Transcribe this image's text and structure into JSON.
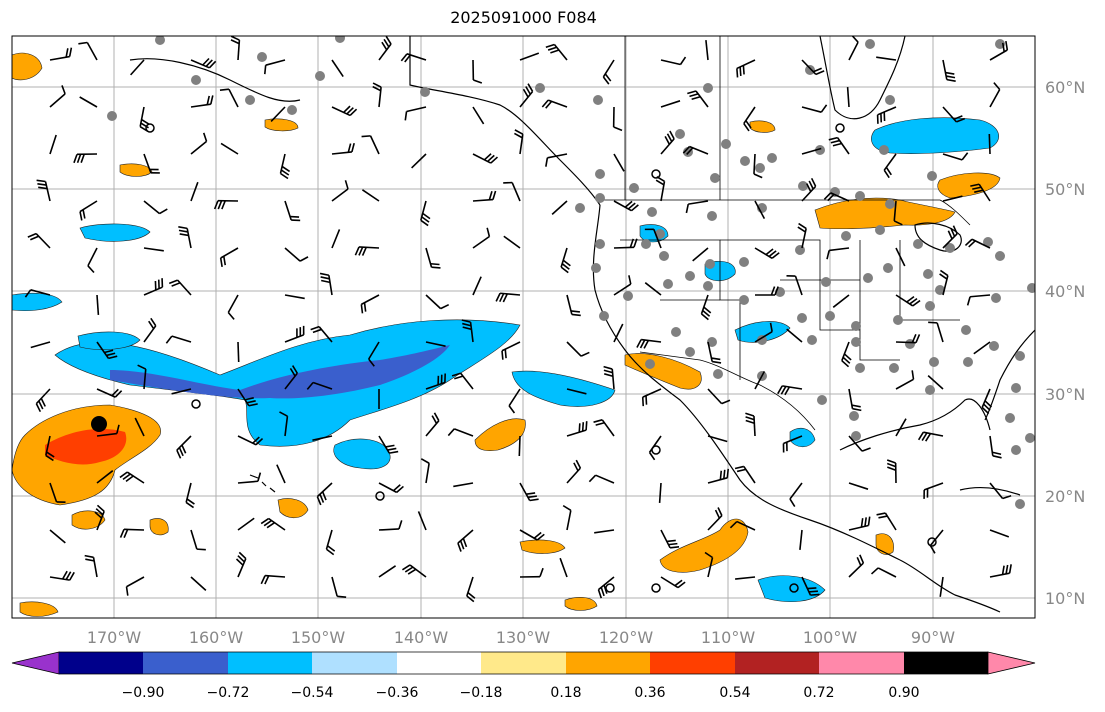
{
  "title": "2025091000 F084",
  "map": {
    "lon_labels": [
      "170°W",
      "160°W",
      "150°W",
      "140°W",
      "130°W",
      "120°W",
      "110°W",
      "100°W",
      "90°W"
    ],
    "lat_labels": [
      "60°N",
      "50°N",
      "40°N",
      "30°N",
      "20°N",
      "10°N"
    ],
    "label_color": "#888888",
    "gridline_color": "#b0b0b0",
    "station_marker_color": "#808080",
    "wind_barb_color": "#000000"
  },
  "colorbar": {
    "tick_labels": [
      "−0.90",
      "−0.72",
      "−0.54",
      "−0.36",
      "−0.18",
      "0.18",
      "0.36",
      "0.54",
      "0.72",
      "0.90"
    ],
    "colors": [
      "#9932cc",
      "#00008b",
      "#3a5fcd",
      "#00bfff",
      "#afe0ff",
      "#ffffff",
      "#ffe98a",
      "#ffa500",
      "#ff3f00",
      "#b22222",
      "#ff88aa"
    ]
  }
}
